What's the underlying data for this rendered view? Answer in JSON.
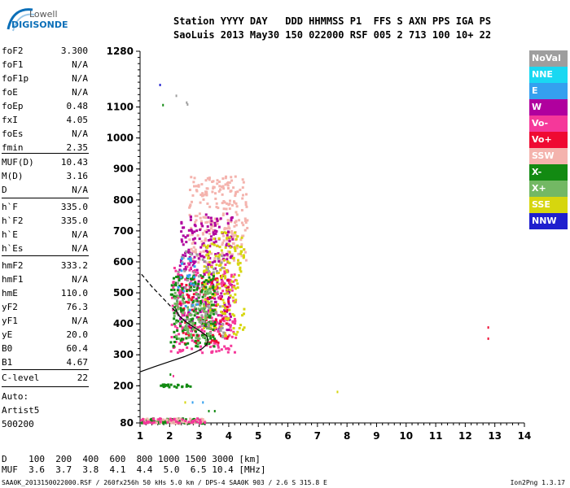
{
  "logo": {
    "line1": "Lowell",
    "line2": "DIGISONDE"
  },
  "header": {
    "line1": "Station YYYY DAY   DDD HHMMSS P1  FFS S AXN PPS IGA PS",
    "line2": "SaoLuis 2013 May30 150 022000 RSF 005 2 713 100 10+ 22"
  },
  "params": {
    "group1": [
      {
        "name": "foF2",
        "value": "3.300"
      },
      {
        "name": "foF1",
        "value": "N/A"
      },
      {
        "name": "foF1p",
        "value": "N/A"
      },
      {
        "name": "foE",
        "value": "N/A"
      },
      {
        "name": "foEp",
        "value": "0.48"
      },
      {
        "name": "fxI",
        "value": "4.05"
      },
      {
        "name": "foEs",
        "value": "N/A"
      },
      {
        "name": "fmin",
        "value": "2.35"
      }
    ],
    "group2": [
      {
        "name": "MUF(D)",
        "value": "10.43"
      },
      {
        "name": "M(D)",
        "value": "3.16"
      },
      {
        "name": "D",
        "value": "N/A"
      }
    ],
    "group3": [
      {
        "name": "h`F",
        "value": "335.0"
      },
      {
        "name": "h`F2",
        "value": "335.0"
      },
      {
        "name": "h`E",
        "value": "N/A"
      },
      {
        "name": "h`Es",
        "value": "N/A"
      }
    ],
    "group4": [
      {
        "name": "hmF2",
        "value": "333.2"
      },
      {
        "name": "hmF1",
        "value": "N/A"
      },
      {
        "name": "hmE",
        "value": "110.0"
      },
      {
        "name": "yF2",
        "value": "76.3"
      },
      {
        "name": "yF1",
        "value": "N/A"
      },
      {
        "name": "yE",
        "value": "20.0"
      },
      {
        "name": "B0",
        "value": "60.4"
      },
      {
        "name": "B1",
        "value": "4.67"
      }
    ],
    "group5": [
      {
        "name": "C-level",
        "value": "22"
      }
    ]
  },
  "auto": {
    "line1": "Auto:",
    "line2": "Artist5",
    "line3": "500200"
  },
  "legend": [
    {
      "label": "NoVal",
      "color": "#9e9e9e"
    },
    {
      "label": "NNE",
      "color": "#19d8f2"
    },
    {
      "label": "E",
      "color": "#34a0ef"
    },
    {
      "label": "W",
      "color": "#b0009e"
    },
    {
      "label": "Vo-",
      "color": "#f5389a"
    },
    {
      "label": "Vo+",
      "color": "#ef0a32"
    },
    {
      "label": "SSW",
      "color": "#f4b3ad"
    },
    {
      "label": "X-",
      "color": "#128a12"
    },
    {
      "label": "X+",
      "color": "#73b864"
    },
    {
      "label": "SSE",
      "color": "#d6d60e"
    },
    {
      "label": "NNW",
      "color": "#1f1fce"
    }
  ],
  "footer": {
    "line1": "D    100  200  400  600  800 1000 1500 3000 [km]",
    "line2": "MUF  3.6  3.7  3.8  4.1  4.4  5.0  6.5 10.4 [MHz]",
    "caption": "SAA0K_2013150022000.RSF / 260fx256h 50 kHs 5.0 km / DPS-4 SAA0K 903 / 2.6 S 315.8 E",
    "version": "Ion2Png 1.3.17"
  },
  "chart_data": {
    "type": "scatter",
    "xlim": [
      1,
      14
    ],
    "ylim": [
      80,
      1280
    ],
    "xticks": [
      1,
      2,
      3,
      4,
      5,
      6,
      7,
      8,
      9,
      10,
      11,
      12,
      13,
      14
    ],
    "yticks": [
      80,
      200,
      300,
      400,
      500,
      600,
      700,
      800,
      900,
      1000,
      1100,
      1280
    ],
    "grid": false,
    "legend_position": "right",
    "x_unit": "MHz",
    "y_unit": "km",
    "echo_clusters": [
      {
        "name": "SSW",
        "color": "#f4b3ad",
        "xmin": 2.6,
        "xmax": 4.6,
        "ymin": 600,
        "ymax": 880,
        "count": 260
      },
      {
        "name": "W",
        "color": "#b0009e",
        "xmin": 2.3,
        "xmax": 4.1,
        "ymin": 380,
        "ymax": 760,
        "count": 280
      },
      {
        "name": "Vo-",
        "color": "#f5389a",
        "xmin": 2.0,
        "xmax": 4.2,
        "ymin": 310,
        "ymax": 600,
        "count": 240
      },
      {
        "name": "Vo+",
        "color": "#ef0a32",
        "xmin": 2.3,
        "xmax": 4.0,
        "ymin": 340,
        "ymax": 560,
        "count": 110
      },
      {
        "name": "SSE",
        "color": "#d6d60e",
        "xmin": 3.1,
        "xmax": 4.5,
        "ymin": 360,
        "ymax": 700,
        "count": 170
      },
      {
        "name": "X-",
        "color": "#128a12",
        "xmin": 2.0,
        "xmax": 3.5,
        "ymin": 330,
        "ymax": 560,
        "count": 170
      },
      {
        "name": "X+",
        "color": "#73b864",
        "xmin": 2.1,
        "xmax": 3.4,
        "ymin": 340,
        "ymax": 520,
        "count": 90
      },
      {
        "name": "NoVal",
        "color": "#9e9e9e",
        "xmin": 2.2,
        "xmax": 3.8,
        "ymin": 360,
        "ymax": 640,
        "count": 60
      },
      {
        "name": "E",
        "color": "#34a0ef",
        "xmin": 2.2,
        "xmax": 2.9,
        "ymin": 440,
        "ymax": 620,
        "count": 20
      },
      {
        "name": "X-",
        "color": "#128a12",
        "xmin": 1.0,
        "xmax": 3.2,
        "ymin": 82,
        "ymax": 98,
        "count": 70
      },
      {
        "name": "SSW",
        "color": "#f4b3ad",
        "xmin": 1.0,
        "xmax": 3.2,
        "ymin": 82,
        "ymax": 98,
        "count": 50
      },
      {
        "name": "Vo-",
        "color": "#f5389a",
        "xmin": 1.0,
        "xmax": 3.2,
        "ymin": 82,
        "ymax": 98,
        "count": 40
      },
      {
        "name": "X-",
        "color": "#128a12",
        "xmin": 1.6,
        "xmax": 2.7,
        "ymin": 198,
        "ymax": 208,
        "count": 25
      }
    ],
    "scattered_points": [
      {
        "x": 1.65,
        "y": 1175,
        "color": "#1f1fce"
      },
      {
        "x": 1.75,
        "y": 1110,
        "color": "#128a12"
      },
      {
        "x": 2.55,
        "y": 1118,
        "color": "#9e9e9e"
      },
      {
        "x": 2.58,
        "y": 1112,
        "color": "#9e9e9e"
      },
      {
        "x": 2.2,
        "y": 1140,
        "color": "#9e9e9e"
      },
      {
        "x": 7.65,
        "y": 184,
        "color": "#d6d60e"
      },
      {
        "x": 12.75,
        "y": 392,
        "color": "#ef0a32"
      },
      {
        "x": 12.75,
        "y": 356,
        "color": "#ef0a32"
      },
      {
        "x": 2.5,
        "y": 150,
        "color": "#d6d60e"
      },
      {
        "x": 2.75,
        "y": 150,
        "color": "#34a0ef"
      },
      {
        "x": 3.1,
        "y": 150,
        "color": "#34a0ef"
      },
      {
        "x": 3.3,
        "y": 122,
        "color": "#128a12"
      },
      {
        "x": 3.5,
        "y": 122,
        "color": "#128a12"
      },
      {
        "x": 2.0,
        "y": 240,
        "color": "#128a12"
      },
      {
        "x": 2.1,
        "y": 235,
        "color": "#f5389a"
      }
    ],
    "profile_curve": [
      [
        1.0,
        245
      ],
      [
        1.5,
        262
      ],
      [
        2.0,
        278
      ],
      [
        2.5,
        294
      ],
      [
        2.9,
        310
      ],
      [
        3.1,
        320
      ],
      [
        3.25,
        333
      ],
      [
        3.3,
        345
      ],
      [
        3.25,
        362
      ],
      [
        3.05,
        375
      ],
      [
        2.75,
        393
      ],
      [
        2.5,
        410
      ],
      [
        2.3,
        428
      ],
      [
        2.2,
        450
      ]
    ],
    "topside_curve": [
      [
        1.05,
        560
      ],
      [
        1.4,
        520
      ],
      [
        1.7,
        490
      ],
      [
        2.0,
        460
      ],
      [
        2.2,
        440
      ]
    ]
  }
}
